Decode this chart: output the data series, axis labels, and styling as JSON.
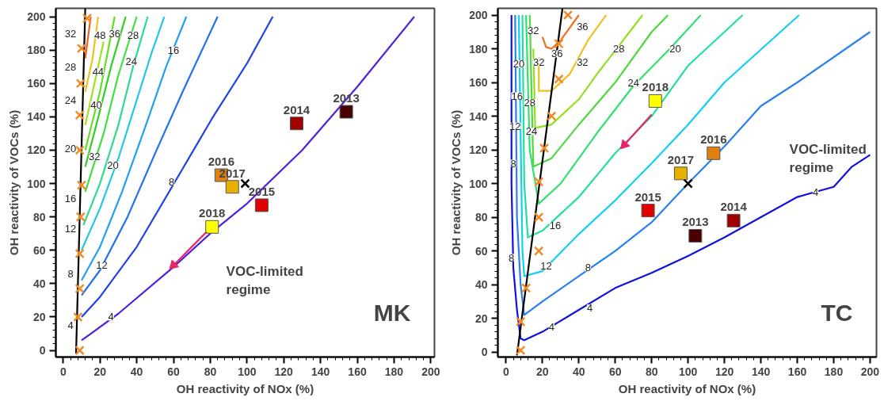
{
  "chart_data": [
    {
      "type": "line",
      "xlabel": "OH reactivity of NOx (%)",
      "ylabel": "OH reactivity of VOCs (%)",
      "xlim": [
        -4,
        202
      ],
      "ylim": [
        -4,
        205
      ],
      "xticks": [
        0,
        20,
        40,
        60,
        80,
        100,
        120,
        140,
        160,
        180,
        200
      ],
      "yticks": [
        0,
        20,
        40,
        60,
        80,
        100,
        120,
        140,
        160,
        180,
        200
      ],
      "grid": false,
      "series": [
        {
          "type": "line",
          "color": "#5020e0",
          "x": [
            10,
            15,
            30,
            60,
            80,
            100,
            130,
            160,
            191
          ],
          "values": [
            6,
            10,
            22,
            50,
            70,
            88,
            120,
            158,
            200
          ]
        },
        {
          "type": "line",
          "color": "#2040e8",
          "x": [
            10,
            20,
            40,
            64,
            81,
            100,
            114
          ],
          "values": [
            20,
            32,
            62,
            107,
            139,
            172,
            200
          ]
        },
        {
          "type": "line",
          "color": "#2070f0",
          "x": [
            10,
            20,
            35,
            50,
            65,
            84
          ],
          "values": [
            33,
            48,
            80,
            118,
            155,
            200
          ]
        },
        {
          "type": "line",
          "color": "#20a0f0",
          "x": [
            10,
            20,
            32,
            45,
            56,
            67
          ],
          "values": [
            42,
            62,
            95,
            135,
            170,
            200
          ]
        },
        {
          "type": "line",
          "color": "#20c8e8",
          "x": [
            10,
            20,
            30,
            40,
            48,
            55
          ],
          "values": [
            60,
            85,
            115,
            150,
            178,
            200
          ]
        },
        {
          "type": "line",
          "color": "#30d890",
          "x": [
            11,
            20,
            30,
            38,
            46
          ],
          "values": [
            75,
            100,
            135,
            170,
            200
          ]
        },
        {
          "type": "line",
          "color": "#40e040",
          "x": [
            12,
            22,
            30,
            40
          ],
          "values": [
            95,
            130,
            165,
            200
          ]
        },
        {
          "type": "line",
          "color": "#30d020",
          "x": [
            12,
            18,
            26,
            34
          ],
          "values": [
            110,
            135,
            170,
            200
          ]
        },
        {
          "type": "line",
          "color": "#60e020",
          "x": [
            12,
            20,
            28
          ],
          "values": [
            120,
            155,
            200
          ]
        },
        {
          "type": "line",
          "color": "#a0e020",
          "x": [
            12,
            18,
            22
          ],
          "values": [
            135,
            165,
            185
          ]
        },
        {
          "type": "line",
          "color": "#f0c020",
          "x": [
            12,
            16,
            19
          ],
          "values": [
            155,
            175,
            200
          ]
        },
        {
          "type": "line",
          "color": "#f06020",
          "x": [
            12,
            15
          ],
          "values": [
            175,
            200
          ]
        },
        {
          "type": "line",
          "color": "#000000",
          "x": [
            7,
            12
          ],
          "values": [
            -2,
            205
          ]
        },
        {
          "type": "scatter",
          "marker": "cross",
          "color": "#f08a24",
          "x": [
            9,
            8,
            9,
            9,
            9.5,
            10,
            9,
            9,
            9.5,
            10,
            13
          ],
          "values": [
            0,
            20,
            37,
            58,
            80,
            99,
            120,
            141,
            160,
            181,
            199
          ]
        },
        {
          "type": "scatter",
          "marker": "square",
          "colors": [
            "#4a0000",
            "#a00000",
            "#e00000",
            "#e08010",
            "#e8b000",
            "#ffff00"
          ],
          "x": [
            154,
            127,
            108,
            86,
            92,
            81
          ],
          "values": [
            143,
            136,
            87,
            105,
            98,
            74
          ]
        },
        {
          "type": "scatter",
          "marker": "cross",
          "color": "#000000",
          "x": [
            99
          ],
          "values": [
            100
          ]
        },
        {
          "type": "line",
          "marker": "triangle",
          "color": "#e8246a",
          "x": [
            78,
            60
          ],
          "values": [
            71,
            51
          ]
        }
      ],
      "annotations": [
        {
          "text": "2013",
          "x": 154,
          "y": 143
        },
        {
          "text": "2014",
          "x": 127,
          "y": 136
        },
        {
          "text": "2015",
          "x": 108,
          "y": 87
        },
        {
          "text": "2016",
          "x": 86,
          "y": 105
        },
        {
          "text": "2017",
          "x": 92,
          "y": 98
        },
        {
          "text": "2018",
          "x": 81,
          "y": 74
        },
        {
          "text": "4",
          "x": 26,
          "y": 20
        },
        {
          "text": "8",
          "x": 59,
          "y": 101
        },
        {
          "text": "12",
          "x": 21,
          "y": 51
        },
        {
          "text": "16",
          "x": 60,
          "y": 180
        },
        {
          "text": "20",
          "x": 27,
          "y": 111
        },
        {
          "text": "24",
          "x": 37,
          "y": 173
        },
        {
          "text": "28",
          "x": 38,
          "y": 189
        },
        {
          "text": "32",
          "x": 17,
          "y": 116
        },
        {
          "text": "36",
          "x": 28,
          "y": 190
        },
        {
          "text": "40",
          "x": 18,
          "y": 147
        },
        {
          "text": "44",
          "x": 19,
          "y": 167
        },
        {
          "text": "48",
          "x": 20,
          "y": 189
        },
        {
          "text": "32",
          "x": 4,
          "y": 190
        },
        {
          "text": "28",
          "x": 4,
          "y": 170
        },
        {
          "text": "24",
          "x": 4,
          "y": 150
        },
        {
          "text": "20",
          "x": 4,
          "y": 121
        },
        {
          "text": "16",
          "x": 4,
          "y": 91
        },
        {
          "text": "12",
          "x": 4,
          "y": 73
        },
        {
          "text": "8",
          "x": 4,
          "y": 46
        },
        {
          "text": "4",
          "x": 4,
          "y": 15
        },
        "VOC-limited\nregime",
        "MK"
      ]
    },
    {
      "type": "line",
      "xlabel": "OH reactivity of NOx (%)",
      "ylabel": "OH reactivity of VOCs (%)",
      "xlim": [
        -4.5,
        203.5
      ],
      "ylim": [
        -3,
        204
      ],
      "xticks": [
        0,
        20,
        40,
        60,
        80,
        100,
        120,
        140,
        160,
        180,
        200
      ],
      "yticks": [
        0,
        20,
        40,
        60,
        80,
        100,
        120,
        140,
        160,
        180,
        200
      ],
      "grid": false,
      "series": [
        {
          "type": "line",
          "color": "#1010e0",
          "x": [
            3,
            3,
            4,
            6,
            8,
            10,
            20,
            40,
            60,
            80,
            100,
            120,
            140,
            160,
            180,
            190,
            200
          ],
          "values": [
            200,
            100,
            50,
            25,
            8,
            7,
            12,
            25,
            38,
            47,
            57,
            68,
            80,
            92,
            98,
            110,
            117
          ]
        },
        {
          "type": "line",
          "color": "#2a80f0",
          "x": [
            5,
            6,
            8,
            10,
            20,
            40,
            60,
            80,
            100,
            120,
            140,
            160,
            200
          ],
          "values": [
            200,
            80,
            40,
            22,
            30,
            45,
            60,
            77,
            100,
            122,
            146,
            160,
            190
          ]
        },
        {
          "type": "line",
          "color": "#10d0f0",
          "x": [
            7,
            9,
            10,
            20,
            40,
            60,
            80,
            100,
            120,
            161
          ],
          "values": [
            200,
            60,
            45,
            48,
            70,
            90,
            112,
            135,
            160,
            200
          ]
        },
        {
          "type": "line",
          "color": "#20e0a0",
          "x": [
            9,
            10,
            12,
            20,
            40,
            60,
            80,
            100,
            130
          ],
          "values": [
            200,
            100,
            68,
            72,
            92,
            118,
            140,
            170,
            200
          ]
        },
        {
          "type": "line",
          "color": "#30e070",
          "x": [
            11,
            13,
            18,
            30,
            50,
            70,
            90,
            107
          ],
          "values": [
            200,
            120,
            88,
            100,
            130,
            158,
            180,
            200
          ]
        },
        {
          "type": "line",
          "color": "#50d840",
          "x": [
            13,
            15,
            25,
            40,
            60,
            80,
            89
          ],
          "values": [
            200,
            110,
            115,
            135,
            160,
            190,
            200
          ]
        },
        {
          "type": "line",
          "color": "#90e020",
          "x": [
            15,
            16,
            25,
            40,
            50,
            75
          ],
          "values": [
            180,
            133,
            135,
            150,
            165,
            200
          ]
        },
        {
          "type": "line",
          "color": "#f0c020",
          "x": [
            18,
            18,
            25,
            35,
            45,
            55
          ],
          "values": [
            175,
            155,
            155,
            165,
            185,
            200
          ]
        },
        {
          "type": "line",
          "color": "#f07020",
          "x": [
            20,
            22,
            25,
            30,
            40
          ],
          "values": [
            187,
            181,
            180,
            185,
            200
          ]
        },
        {
          "type": "line",
          "color": "#000000",
          "x": [
            6,
            31
          ],
          "values": [
            -2,
            204
          ]
        },
        {
          "type": "scatter",
          "marker": "cross",
          "color": "#f08a24",
          "x": [
            8,
            8,
            11,
            18,
            18,
            18,
            21,
            25,
            29,
            29,
            34
          ],
          "values": [
            1,
            18,
            38,
            60,
            80,
            101,
            121,
            140,
            162,
            183,
            200
          ]
        },
        {
          "type": "scatter",
          "marker": "square",
          "colors": [
            "#4a0000",
            "#a00000",
            "#e00000",
            "#e08010",
            "#e8b000",
            "#ffff00"
          ],
          "x": [
            104,
            125,
            78,
            114,
            96,
            82
          ],
          "values": [
            69,
            78,
            84,
            118,
            106,
            149
          ]
        },
        {
          "type": "scatter",
          "marker": "cross",
          "color": "#000000",
          "x": [
            100
          ],
          "values": [
            100
          ]
        },
        {
          "type": "line",
          "marker": "triangle",
          "color": "#e8246a",
          "x": [
            80,
            65
          ],
          "values": [
            141,
            123
          ]
        }
      ],
      "annotations": [
        {
          "text": "2013",
          "x": 104,
          "y": 69
        },
        {
          "text": "2014",
          "x": 125,
          "y": 78
        },
        {
          "text": "2015",
          "x": 78,
          "y": 84
        },
        {
          "text": "2016",
          "x": 114,
          "y": 118
        },
        {
          "text": "2017",
          "x": 96,
          "y": 106
        },
        {
          "text": "2018",
          "x": 82,
          "y": 149
        },
        {
          "text": "4",
          "x": 25,
          "y": 15
        },
        {
          "text": "4",
          "x": 46,
          "y": 26
        },
        {
          "text": "4",
          "x": 170,
          "y": 95
        },
        {
          "text": "8",
          "x": 45,
          "y": 50
        },
        {
          "text": "8",
          "x": 3,
          "y": 56
        },
        {
          "text": "8",
          "x": 4,
          "y": 112
        },
        {
          "text": "12",
          "x": 22,
          "y": 51
        },
        {
          "text": "12",
          "x": 5,
          "y": 134
        },
        {
          "text": "16",
          "x": 27,
          "y": 75
        },
        {
          "text": "16",
          "x": 6,
          "y": 152
        },
        {
          "text": "20",
          "x": 93,
          "y": 180
        },
        {
          "text": "20",
          "x": 7,
          "y": 171
        },
        {
          "text": "24",
          "x": 70,
          "y": 160
        },
        {
          "text": "24",
          "x": 14,
          "y": 131
        },
        {
          "text": "28",
          "x": 62,
          "y": 180
        },
        {
          "text": "28",
          "x": 13,
          "y": 148
        },
        {
          "text": "32",
          "x": 42,
          "y": 172
        },
        {
          "text": "32",
          "x": 18,
          "y": 172
        },
        {
          "text": "32",
          "x": 15,
          "y": 191
        },
        {
          "text": "36",
          "x": 42,
          "y": 193
        },
        {
          "text": "36",
          "x": 28,
          "y": 177
        },
        "VOC-limited\nregime",
        "TC"
      ]
    }
  ]
}
